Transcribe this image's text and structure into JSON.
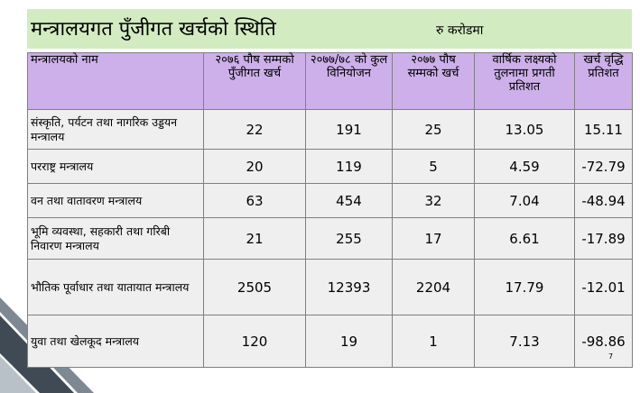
{
  "title": "मन्त्रालयगत पुँजीगत खर्चको स्थिति",
  "unit": "रु करोडमा",
  "table": {
    "headers": [
      "मन्त्रालयको नाम",
      "२०७६ पौष सम्मको पुँजीगत खर्च",
      "२०७७/७८ को कुल विनियोजन",
      "२०७७ पौष सम्मको खर्च",
      "वार्षिक लक्ष्यको तुलनामा प्रगती प्रतिशत",
      "खर्च वृद्धि प्रतिशत"
    ],
    "rows": [
      {
        "name": "संस्कृति, पर्यटन तथा नागरिक उड्डयन मन्त्रालय",
        "v1": "22",
        "v2": "191",
        "v3": "25",
        "v4": "13.05",
        "v5": "15.11"
      },
      {
        "name": "परराष्ट्र मन्त्रालय",
        "v1": "20",
        "v2": "119",
        "v3": "5",
        "v4": "4.59",
        "v5": "-72.79"
      },
      {
        "name": "वन तथा वातावरण मन्त्रालय",
        "v1": "63",
        "v2": "454",
        "v3": "32",
        "v4": "7.04",
        "v5": "-48.94"
      },
      {
        "name": "भूमि व्यवस्था, सहकारी तथा गरिबी निवारण मन्त्रालय",
        "v1": "21",
        "v2": "255",
        "v3": "17",
        "v4": "6.61",
        "v5": "-17.89"
      },
      {
        "name": "भौतिक पूर्वाधार तथा यातायात मन्त्रालय",
        "v1": "2505",
        "v2": "12393",
        "v3": "2204",
        "v4": "17.79",
        "v5": "-12.01"
      },
      {
        "name": "युवा तथा खेलकूद मन्त्रालय",
        "v1": "120",
        "v2": "19",
        "v3": "1",
        "v4": "7.13",
        "v5": "-98.86"
      }
    ]
  },
  "page_number": "7",
  "colors": {
    "title_bg": "#d2ebc0",
    "header_bg": "#cdb0ea",
    "cell_bg": "#efefef",
    "deco_dark": "#3f4a54",
    "deco_light": "#b8c0c8"
  }
}
